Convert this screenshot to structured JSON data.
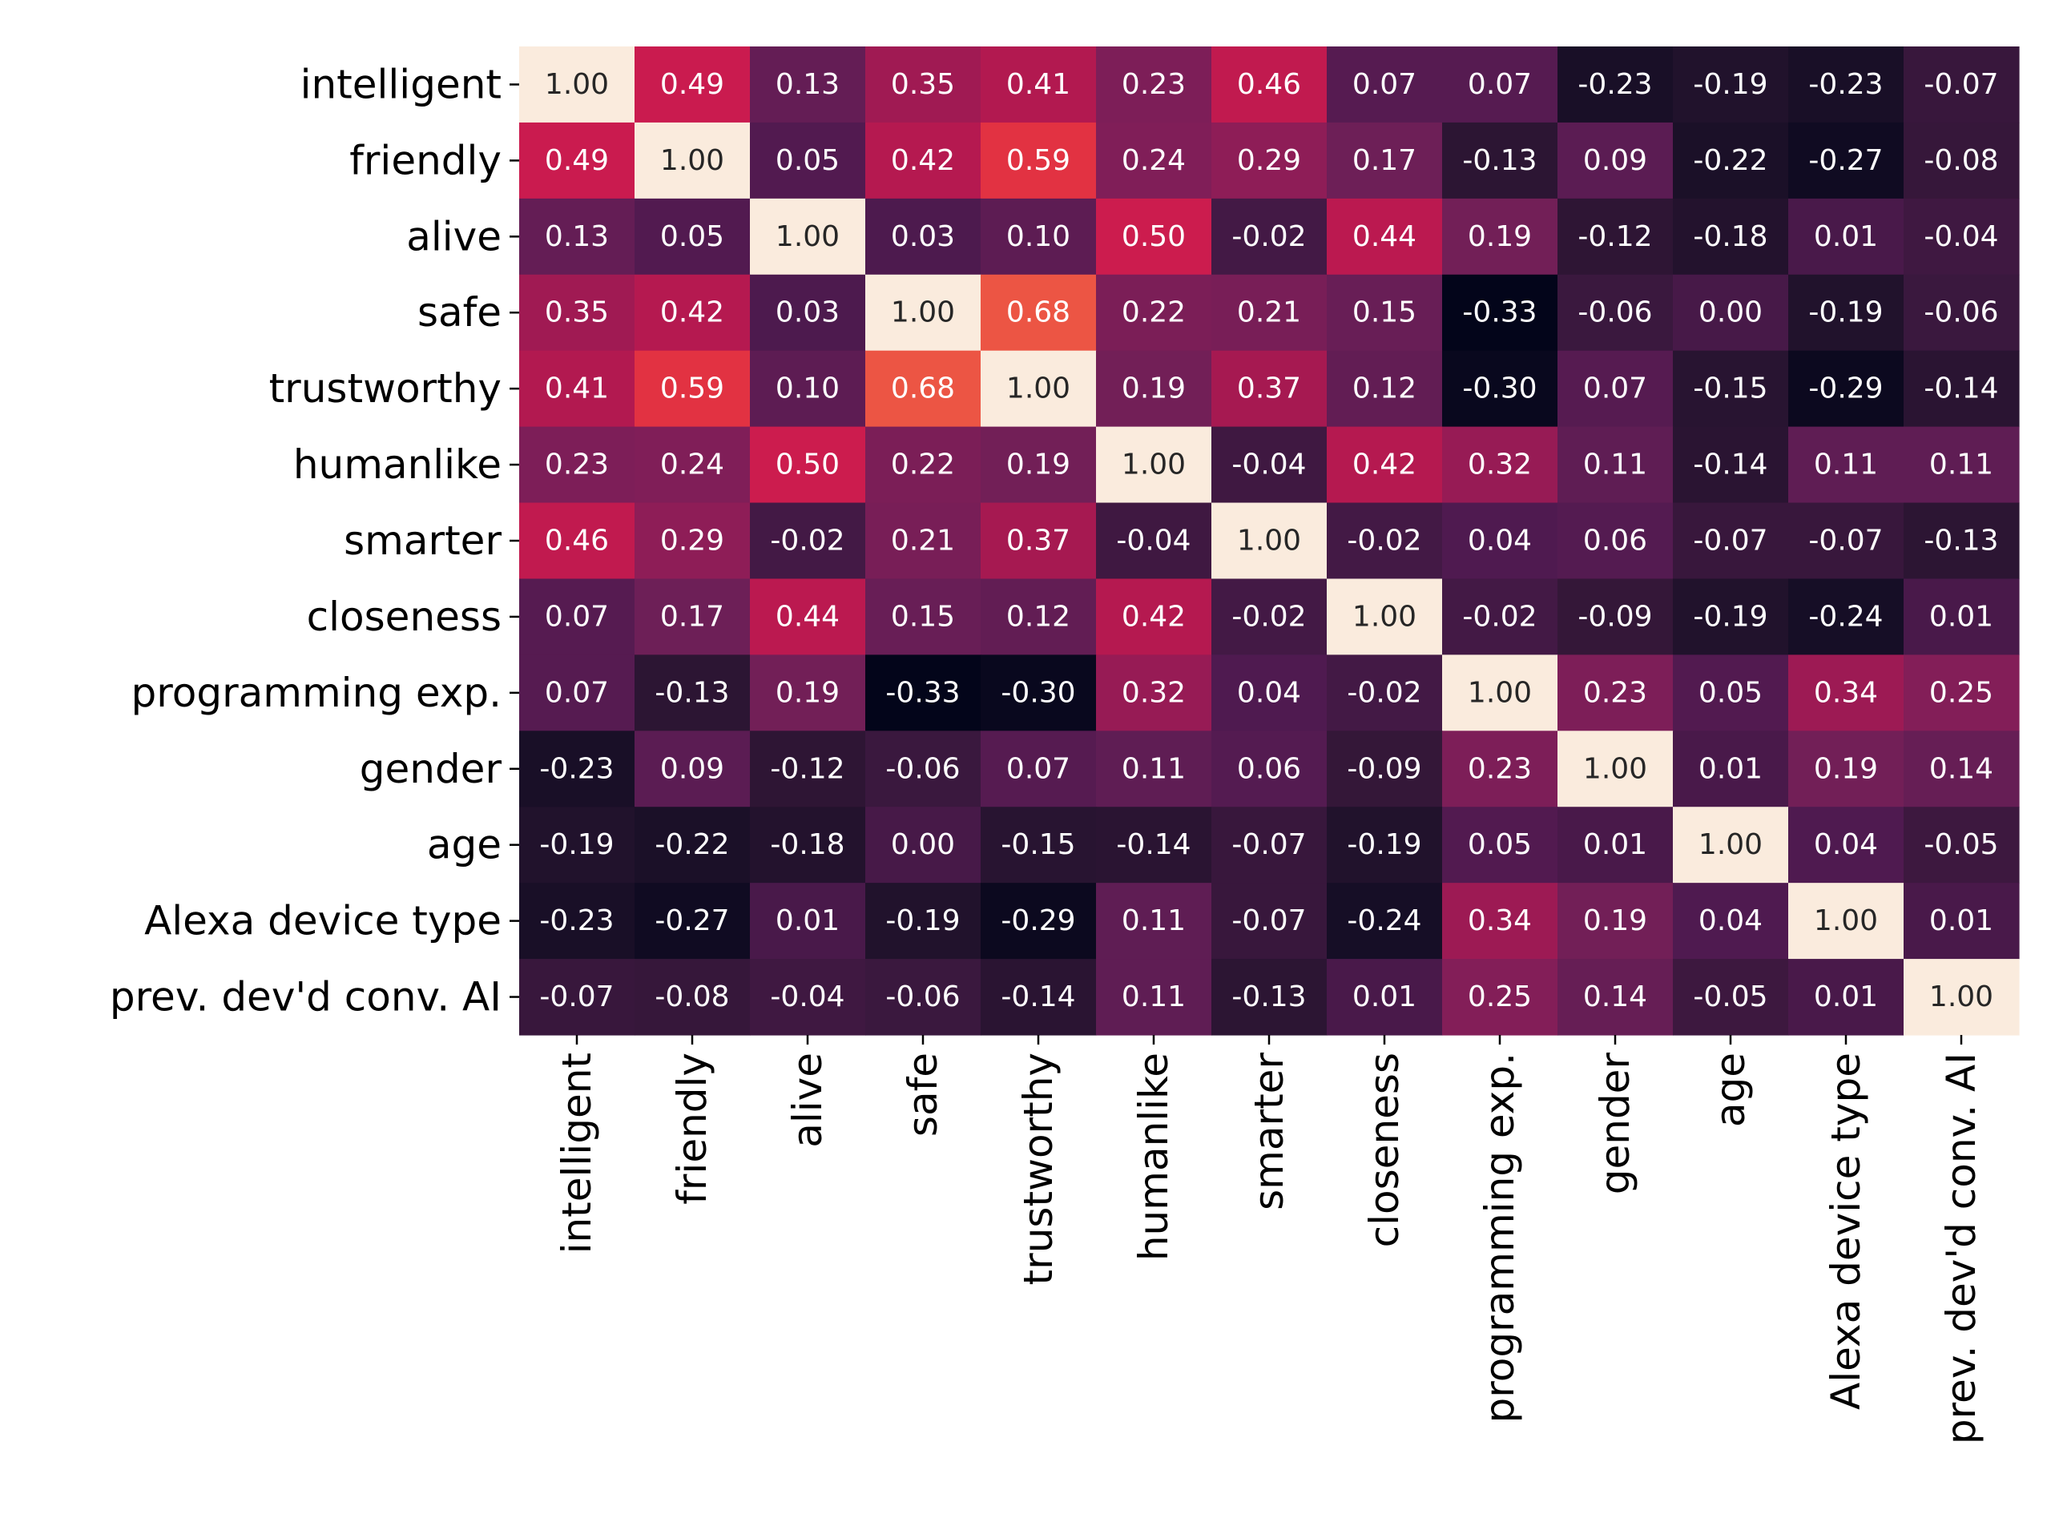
{
  "chart_data": {
    "type": "heatmap",
    "title": "",
    "xlabel": "",
    "ylabel": "",
    "labels": [
      "intelligent",
      "friendly",
      "alive",
      "safe",
      "trustworthy",
      "humanlike",
      "smarter",
      "closeness",
      "programming exp.",
      "gender",
      "age",
      "Alexa device type",
      "prev. dev'd conv. AI"
    ],
    "values": [
      [
        1.0,
        0.49,
        0.13,
        0.35,
        0.41,
        0.23,
        0.46,
        0.07,
        0.07,
        -0.23,
        -0.19,
        -0.23,
        -0.07
      ],
      [
        0.49,
        1.0,
        0.05,
        0.42,
        0.59,
        0.24,
        0.29,
        0.17,
        -0.13,
        0.09,
        -0.22,
        -0.27,
        -0.08
      ],
      [
        0.13,
        0.05,
        1.0,
        0.03,
        0.1,
        0.5,
        -0.02,
        0.44,
        0.19,
        -0.12,
        -0.18,
        0.01,
        -0.04
      ],
      [
        0.35,
        0.42,
        0.03,
        1.0,
        0.68,
        0.22,
        0.21,
        0.15,
        -0.33,
        -0.06,
        0.0,
        -0.19,
        -0.06
      ],
      [
        0.41,
        0.59,
        0.1,
        0.68,
        1.0,
        0.19,
        0.37,
        0.12,
        -0.3,
        0.07,
        -0.15,
        -0.29,
        -0.14
      ],
      [
        0.23,
        0.24,
        0.5,
        0.22,
        0.19,
        1.0,
        -0.04,
        0.42,
        0.32,
        0.11,
        -0.14,
        0.11,
        0.11
      ],
      [
        0.46,
        0.29,
        -0.02,
        0.21,
        0.37,
        -0.04,
        1.0,
        -0.02,
        0.04,
        0.06,
        -0.07,
        -0.07,
        -0.13
      ],
      [
        0.07,
        0.17,
        0.44,
        0.15,
        0.12,
        0.42,
        -0.02,
        1.0,
        -0.02,
        -0.09,
        -0.19,
        -0.24,
        0.01
      ],
      [
        0.07,
        -0.13,
        0.19,
        -0.33,
        -0.3,
        0.32,
        0.04,
        -0.02,
        1.0,
        0.23,
        0.05,
        0.34,
        0.25
      ],
      [
        -0.23,
        0.09,
        -0.12,
        -0.06,
        0.07,
        0.11,
        0.06,
        -0.09,
        0.23,
        1.0,
        0.01,
        0.19,
        0.14
      ],
      [
        -0.19,
        -0.22,
        -0.18,
        0.0,
        -0.15,
        -0.14,
        -0.07,
        -0.19,
        0.05,
        0.01,
        1.0,
        0.04,
        -0.05
      ],
      [
        -0.23,
        -0.27,
        0.01,
        -0.19,
        -0.29,
        0.11,
        -0.07,
        -0.24,
        0.34,
        0.19,
        0.04,
        1.0,
        0.01
      ],
      [
        -0.07,
        -0.08,
        -0.04,
        -0.06,
        -0.14,
        0.11,
        -0.13,
        0.01,
        0.25,
        0.14,
        -0.05,
        0.01,
        1.0
      ]
    ],
    "value_format": "0.00",
    "color_range": [
      -0.33,
      1.0
    ],
    "colormap": "rocket",
    "colorbar": false,
    "grid": false,
    "legend": "none"
  }
}
